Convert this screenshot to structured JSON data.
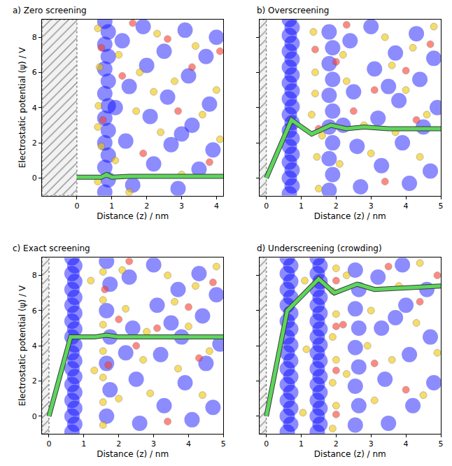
{
  "chart_data": [
    {
      "type": "scatter",
      "title": "a) Zero screening",
      "x_label": "Distance (z) / nm",
      "y_label": "Electrostatic potential (ψ) / V",
      "xlim": [
        -1,
        4.2
      ],
      "ylim": [
        -1,
        9
      ],
      "xticks": [
        0,
        1,
        2,
        3,
        4
      ],
      "yticks": [
        0,
        2,
        4,
        6,
        8
      ],
      "electrode_surface": 0,
      "series": [
        {
          "type": "scatter",
          "marker": "large circle",
          "color": "#0000ff",
          "x": [
            0.8,
            0.9,
            0.8,
            0.9,
            0.8,
            0.9,
            0.8,
            0.9,
            0.8,
            0.9,
            0.8,
            0.9,
            0.8,
            0.9,
            0.8
          ],
          "y": [
            -0.8,
            -0.1,
            0.6,
            1.3,
            2.0,
            2.7,
            3.4,
            4.1,
            4.8,
            5.5,
            6.2,
            6.9,
            7.6,
            8.3,
            8.9
          ]
        },
        {
          "type": "scatter",
          "marker": "large circle",
          "color": "#0000ff",
          "x": [
            1.3,
            1.5,
            1.4,
            1.6,
            1.9,
            2.0,
            2.1,
            2.2,
            2.5,
            2.6,
            2.7,
            2.9,
            3.1,
            3.2,
            3.3,
            3.5,
            3.7,
            3.8,
            3.9,
            4.0,
            1.1,
            3.0
          ],
          "y": [
            7.8,
            5.2,
            2.1,
            -0.4,
            8.6,
            6.4,
            3.5,
            0.8,
            7.2,
            4.6,
            1.9,
            -0.6,
            8.4,
            5.8,
            3.0,
            0.5,
            6.9,
            4.2,
            1.6,
            8.0,
            4.0,
            2.5
          ]
        },
        {
          "type": "scatter",
          "marker": "small circle",
          "color": "#f2c500",
          "x": [
            0.6,
            0.65,
            0.62,
            0.7,
            0.6,
            0.6,
            1.2,
            1.1,
            1.7,
            1.8,
            2.3,
            2.4,
            2.8,
            3.0,
            3.4,
            3.6,
            4.0,
            4.1,
            1.5,
            2.2
          ],
          "y": [
            8.5,
            6.3,
            4.1,
            1.8,
            -0.2,
            2.9,
            7.0,
            1.0,
            3.8,
            6.0,
            8.2,
            2.6,
            5.5,
            0.2,
            7.5,
            3.6,
            5.0,
            2.2,
            -0.8,
            4.9
          ]
        },
        {
          "type": "scatter",
          "marker": "small circle",
          "color": "#ff3b2f",
          "x": [
            0.7,
            0.75,
            1.3,
            1.9,
            2.6,
            2.9,
            3.3,
            3.8,
            4.1,
            1.6
          ],
          "y": [
            7.4,
            3.3,
            5.8,
            1.4,
            7.9,
            3.8,
            6.3,
            0.9,
            7.2,
            8.8
          ]
        },
        {
          "type": "line",
          "color": "#5cd65c",
          "x": [
            0,
            0.7,
            0.85,
            1.0,
            1.5,
            2.0,
            4.2
          ],
          "y": [
            0.05,
            0.05,
            0.2,
            0.05,
            0.1,
            0.1,
            0.1
          ]
        }
      ]
    },
    {
      "type": "scatter",
      "title": "b) Overscreening",
      "x_label": "Distance (z) / nm",
      "xlim": [
        -0.2,
        5
      ],
      "ylim": [
        -1,
        9
      ],
      "xticks": [
        0,
        1,
        2,
        3,
        4,
        5
      ],
      "yticks": [
        0,
        2,
        4,
        6,
        8
      ],
      "tick_labels": "x",
      "electrode_surface": 0,
      "series": [
        {
          "type": "scatter",
          "marker": "large circle",
          "color": "#0000ff",
          "x": [
            0.66,
            0.74,
            0.66,
            0.74,
            0.66,
            0.74,
            0.66,
            0.74,
            0.66,
            0.74,
            0.66,
            0.74,
            0.66,
            0.74,
            0.66,
            0.74,
            0.66,
            0.74,
            0.66,
            0.74,
            0.66,
            0.74,
            0.66
          ],
          "y": [
            -0.9,
            -0.45,
            0,
            0.45,
            0.9,
            1.35,
            1.8,
            2.25,
            2.7,
            3.15,
            3.6,
            4.05,
            4.5,
            4.95,
            5.4,
            5.85,
            6.3,
            6.75,
            7.2,
            7.65,
            8.1,
            8.55,
            9
          ]
        },
        {
          "type": "scatter",
          "marker": "large circle",
          "color": "#0000ff",
          "x": [
            1.8,
            1.9,
            1.8,
            1.9,
            1.8,
            1.9,
            1.8,
            1.9,
            1.8,
            1.9,
            1.8
          ],
          "y": [
            -0.7,
            0.2,
            1.1,
            2.0,
            2.9,
            3.8,
            4.7,
            5.6,
            6.5,
            7.4,
            8.3
          ]
        },
        {
          "type": "scatter",
          "marker": "large circle",
          "color": "#0000ff",
          "x": [
            2.4,
            2.5,
            2.6,
            2.7,
            3.0,
            3.1,
            3.2,
            3.3,
            3.7,
            3.8,
            3.9,
            4.1,
            4.3,
            4.4,
            4.5,
            4.7,
            4.8,
            4.9,
            2.2,
            3.5
          ],
          "y": [
            7.8,
            4.9,
            1.8,
            -0.5,
            8.6,
            6.2,
            3.4,
            0.7,
            7.1,
            4.4,
            2.0,
            -0.3,
            8.2,
            5.6,
            2.9,
            0.4,
            6.8,
            4.0,
            3.0,
            5.2
          ]
        },
        {
          "type": "scatter",
          "marker": "small circle",
          "color": "#f2c500",
          "x": [
            1.35,
            1.4,
            1.3,
            1.45,
            1.5,
            1.4,
            2.2,
            2.1,
            2.3,
            2.8,
            3.0,
            3.4,
            3.6,
            3.7,
            4.0,
            4.2,
            4.4,
            4.6,
            4.8,
            1.6
          ],
          "y": [
            8.3,
            6.0,
            3.6,
            1.2,
            -0.6,
            4.8,
            7.0,
            0.8,
            5.5,
            3.0,
            1.4,
            8.0,
            6.4,
            2.6,
            5.0,
            7.4,
            1.2,
            3.6,
            8.6,
            2.4
          ]
        },
        {
          "type": "scatter",
          "marker": "small circle",
          "color": "#ff3b2f",
          "x": [
            1.4,
            1.5,
            2.3,
            2.5,
            3.1,
            3.4,
            4.0,
            4.3,
            4.7,
            2.0
          ],
          "y": [
            7.3,
            2.8,
            8.7,
            3.8,
            5.0,
            -0.2,
            6.1,
            3.3,
            7.6,
            6.6
          ]
        },
        {
          "type": "line",
          "color": "#5cd65c",
          "x": [
            0,
            0.72,
            1.3,
            1.85,
            2.3,
            2.8,
            3.5,
            5
          ],
          "y": [
            0,
            3.3,
            2.5,
            3.0,
            2.8,
            2.9,
            2.8,
            2.8
          ]
        }
      ]
    },
    {
      "type": "scatter",
      "title": "c) Exact screening",
      "x_label": "Distance (z) / nm",
      "y_label": "Electrostatic potential (ψ) / V",
      "xlim": [
        -0.2,
        5
      ],
      "ylim": [
        -1,
        9
      ],
      "xticks": [
        0,
        1,
        2,
        3,
        4,
        5
      ],
      "yticks": [
        0,
        2,
        4,
        6,
        8
      ],
      "electrode_surface": 0,
      "series": [
        {
          "type": "scatter",
          "marker": "large circle",
          "color": "#0000ff",
          "x": [
            0.66,
            0.74,
            0.66,
            0.74,
            0.66,
            0.74,
            0.66,
            0.74,
            0.66,
            0.74,
            0.66,
            0.74,
            0.66,
            0.74,
            0.66,
            0.74,
            0.66,
            0.74,
            0.66,
            0.74,
            0.66,
            0.74,
            0.66
          ],
          "y": [
            -0.9,
            -0.45,
            0,
            0.45,
            0.9,
            1.35,
            1.8,
            2.25,
            2.7,
            3.15,
            3.6,
            4.05,
            4.5,
            4.95,
            5.4,
            5.85,
            6.3,
            6.75,
            7.2,
            7.65,
            8.1,
            8.55,
            9
          ]
        },
        {
          "type": "scatter",
          "marker": "large circle",
          "color": "#0000ff",
          "x": [
            1.65,
            1.75,
            1.65,
            1.75,
            1.65,
            1.75,
            1.65
          ],
          "y": [
            0.0,
            1.5,
            3.0,
            4.5,
            6.0,
            7.5,
            8.8
          ]
        },
        {
          "type": "scatter",
          "marker": "large circle",
          "color": "#0000ff",
          "x": [
            2.3,
            2.4,
            2.5,
            2.6,
            3.0,
            3.1,
            3.2,
            3.3,
            3.7,
            3.8,
            3.9,
            4.1,
            4.3,
            4.4,
            4.5,
            4.7,
            4.8,
            4.9,
            2.2,
            3.5
          ],
          "y": [
            7.9,
            5.0,
            2.1,
            -0.4,
            8.6,
            6.3,
            3.5,
            0.6,
            7.2,
            4.5,
            1.9,
            -0.2,
            8.1,
            5.7,
            3.0,
            0.5,
            6.9,
            4.1,
            3.6,
            5.3
          ]
        },
        {
          "type": "scatter",
          "marker": "small circle",
          "color": "#f2c500",
          "x": [
            1.2,
            1.3,
            1.55,
            1.55,
            1.55,
            1.55,
            1.55,
            1.55,
            1.55,
            2.1,
            2.0,
            2.2,
            2.7,
            2.9,
            3.4,
            3.6,
            3.7,
            4.0,
            4.2,
            4.4,
            4.6,
            4.8,
            2.8
          ],
          "y": [
            7.7,
            2.6,
            -0.5,
            0.8,
            2.2,
            3.7,
            5.2,
            6.6,
            8.2,
            8.3,
            1.0,
            6.1,
            3.2,
            1.3,
            8.0,
            6.5,
            2.7,
            5.1,
            7.4,
            1.2,
            3.7,
            8.5,
            4.8
          ]
        },
        {
          "type": "scatter",
          "marker": "small circle",
          "color": "#ff3b2f",
          "x": [
            1.6,
            1.7,
            2.3,
            2.5,
            3.1,
            3.4,
            4.0,
            4.3,
            4.7,
            2.0
          ],
          "y": [
            7.2,
            2.9,
            8.8,
            4.0,
            5.0,
            -0.3,
            6.2,
            3.3,
            7.6,
            5.5
          ]
        },
        {
          "type": "line",
          "color": "#5cd65c",
          "x": [
            0,
            0.62,
            1.3,
            1.65,
            2.0,
            5
          ],
          "y": [
            0,
            4.5,
            4.5,
            4.6,
            4.5,
            4.5
          ]
        }
      ]
    },
    {
      "type": "scatter",
      "title": "d) Underscreening (crowding)",
      "x_label": "Distance (z) / nm",
      "xlim": [
        -0.2,
        5
      ],
      "ylim": [
        -1,
        9
      ],
      "xticks": [
        0,
        1,
        2,
        3,
        4,
        5
      ],
      "yticks": [
        0,
        2,
        4,
        6,
        8
      ],
      "tick_labels": "x",
      "electrode_surface": 0,
      "series": [
        {
          "type": "scatter",
          "marker": "large circle",
          "color": "#0000ff",
          "x": [
            0.6,
            0.7,
            0.6,
            0.7,
            0.6,
            0.7,
            0.6,
            0.7,
            0.6,
            0.7,
            0.6,
            0.7,
            0.6,
            0.7,
            0.6,
            0.7,
            0.6,
            0.7,
            0.6,
            0.7,
            0.6,
            0.7,
            0.6
          ],
          "y": [
            -0.9,
            -0.45,
            0,
            0.45,
            0.9,
            1.35,
            1.8,
            2.25,
            2.7,
            3.15,
            3.6,
            4.05,
            4.5,
            4.95,
            5.4,
            5.85,
            6.3,
            6.75,
            7.2,
            7.65,
            8.1,
            8.55,
            9
          ]
        },
        {
          "type": "scatter",
          "marker": "large circle",
          "color": "#0000ff",
          "x": [
            1.46,
            1.54,
            1.46,
            1.54,
            1.46,
            1.54,
            1.46,
            1.54,
            1.46,
            1.54,
            1.46,
            1.54,
            1.46,
            1.54,
            1.46,
            1.54,
            1.46,
            1.54,
            1.46,
            1.54,
            1.46,
            1.54,
            1.46
          ],
          "y": [
            -0.9,
            -0.45,
            0,
            0.45,
            0.9,
            1.35,
            1.8,
            2.25,
            2.7,
            3.15,
            3.6,
            4.05,
            4.5,
            4.95,
            5.4,
            5.85,
            6.3,
            6.75,
            7.2,
            7.65,
            8.1,
            8.55,
            9
          ]
        },
        {
          "type": "scatter",
          "marker": "large circle",
          "color": "#0000ff",
          "x": [
            2.55,
            2.65,
            2.55,
            2.65,
            2.55,
            2.65,
            2.55,
            2.65,
            2.55
          ],
          "y": [
            -0.5,
            0.6,
            1.7,
            2.8,
            3.9,
            5.0,
            6.1,
            7.2,
            8.3
          ]
        },
        {
          "type": "scatter",
          "marker": "large circle",
          "color": "#0000ff",
          "x": [
            3.2,
            3.3,
            3.4,
            3.5,
            3.9,
            4.0,
            4.1,
            4.2,
            4.6,
            4.7,
            4.8,
            3.7
          ],
          "y": [
            7.9,
            5.0,
            2.1,
            -0.4,
            8.6,
            6.3,
            3.5,
            0.6,
            7.2,
            4.5,
            1.9,
            5.6
          ]
        },
        {
          "type": "scatter",
          "marker": "small circle",
          "color": "#f2c500",
          "x": [
            1.1,
            1.05,
            1.15,
            1.9,
            2.0,
            1.9,
            2.0,
            1.9,
            2.0,
            1.9,
            2.0,
            2.3,
            2.3,
            3.0,
            3.1,
            3.6,
            3.8,
            4.3,
            4.4,
            4.5,
            4.9,
            2.9
          ],
          "y": [
            7.7,
            0.2,
            3.8,
            -0.7,
            0.6,
            1.9,
            3.2,
            4.5,
            5.8,
            7.1,
            8.4,
            8.0,
            2.4,
            6.0,
            0.9,
            3.2,
            7.4,
            5.3,
            8.7,
            1.2,
            3.6,
            4.0
          ]
        },
        {
          "type": "scatter",
          "marker": "small circle",
          "color": "#ff3b2f",
          "x": [
            2.0,
            2.0,
            2.0,
            2.0,
            2.2,
            3.1,
            3.5,
            4.0,
            4.4,
            4.9
          ],
          "y": [
            0.1,
            2.6,
            5.1,
            7.7,
            5.2,
            3.0,
            8.5,
            1.5,
            6.5,
            8.0
          ]
        },
        {
          "type": "line",
          "color": "#5cd65c",
          "x": [
            0,
            0.6,
            1.5,
            1.95,
            2.6,
            3.1,
            5
          ],
          "y": [
            0,
            6.0,
            7.8,
            7.0,
            7.5,
            7.2,
            7.4
          ]
        }
      ]
    }
  ]
}
